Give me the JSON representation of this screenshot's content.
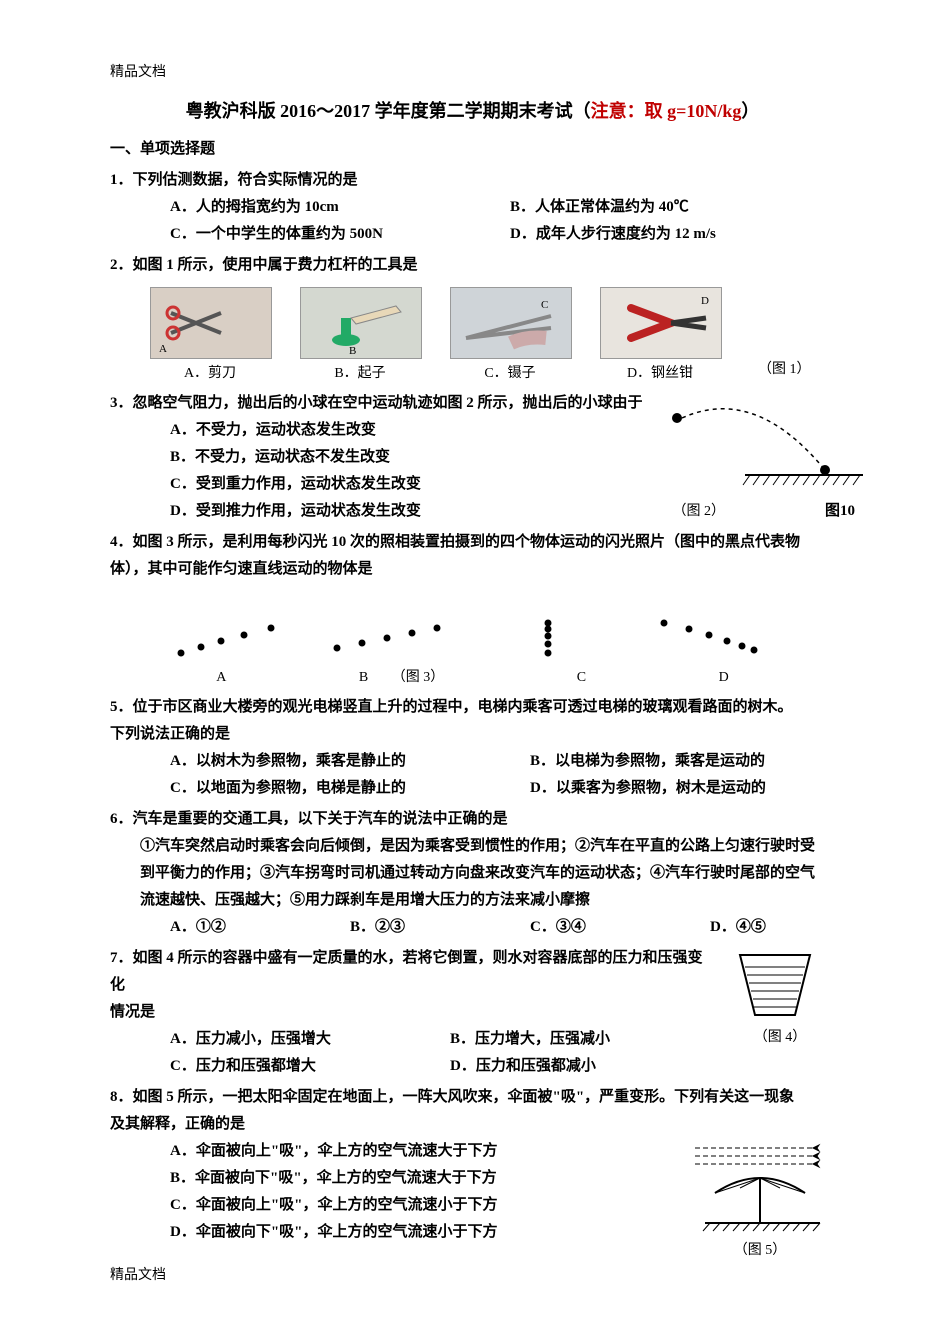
{
  "header": "精品文档",
  "footer": "精品文档",
  "title_black": "粤教沪科版 2016～2017 学年度第二学期期末考试（",
  "title_red": "注意：取 g=10N/kg",
  "title_end": "）",
  "section1": "一、单项选择题",
  "q1": {
    "stem": "1．下列估测数据，符合实际情况的是",
    "a": "A．人的拇指宽约为 10cm",
    "b": "B．人体正常体温约为 40℃",
    "c": "C．一个中学生的体重约为 500N",
    "d": "D．成年人步行速度约为 12 m/s"
  },
  "q2": {
    "stem": "2．如图 1 所示，使用中属于费力杠杆的工具是",
    "a": "A．剪刀",
    "b": "B．起子",
    "c": "C．镊子",
    "d": "D．钢丝钳",
    "caption": "（图 1）"
  },
  "q3": {
    "stem": "3．忽略空气阻力，抛出后的小球在空中运动轨迹如图 2 所示，抛出后的小球由于",
    "a": "A．不受力，运动状态发生改变",
    "b": "B．不受力，运动状态不发生改变",
    "c": "C．受到重力作用，运动状态发生改变",
    "d": "D．受到推力作用，运动状态发生改变",
    "caption": "（图 2）",
    "figlabel": "图10"
  },
  "q4": {
    "stem1": "4．如图 3 所示，是利用每秒闪光 10 次的照相装置拍摄到的四个物体运动的闪光照片（图中的黑点代表物",
    "stem2": "体），其中可能作匀速直线运动的物体是",
    "a": "A",
    "b": "B",
    "c": "C",
    "d": "D",
    "caption": "（图 3）",
    "panels": {
      "A": {
        "dots": [
          [
            15,
            50
          ],
          [
            35,
            44
          ],
          [
            55,
            38
          ],
          [
            78,
            32
          ],
          [
            105,
            25
          ]
        ]
      },
      "B": {
        "dots": [
          [
            10,
            45
          ],
          [
            35,
            40
          ],
          [
            60,
            35
          ],
          [
            85,
            30
          ],
          [
            110,
            25
          ]
        ]
      },
      "C": {
        "dots": [
          [
            60,
            50
          ],
          [
            60,
            41
          ],
          [
            60,
            33
          ],
          [
            60,
            26
          ],
          [
            60,
            20
          ]
        ]
      },
      "D": {
        "dots": [
          [
            15,
            20
          ],
          [
            40,
            26
          ],
          [
            60,
            32
          ],
          [
            78,
            38
          ],
          [
            93,
            43
          ],
          [
            105,
            47
          ]
        ]
      }
    }
  },
  "q5": {
    "stem1": "5．位于市区商业大楼旁的观光电梯竖直上升的过程中，电梯内乘客可透过电梯的玻璃观看路面的树木。",
    "stem2": "下列说法正确的是",
    "a": "A．以树木为参照物，乘客是静止的",
    "b": "B．以电梯为参照物，乘客是运动的",
    "c": "C．以地面为参照物，电梯是静止的",
    "d": "D．以乘客为参照物，树木是运动的"
  },
  "q6": {
    "stem": "6．汽车是重要的交通工具，以下关于汽车的说法中正确的是",
    "l1": "①汽车突然启动时乘客会向后倾倒，是因为乘客受到惯性的作用；②汽车在平直的公路上匀速行驶时受",
    "l2": "到平衡力的作用；③汽车拐弯时司机通过转动方向盘来改变汽车的运动状态；④汽车行驶时尾部的空气",
    "l3": "流速越快、压强越大；⑤用力踩刹车是用增大压力的方法来减小摩擦",
    "a": "A．①②",
    "b": "B．②③",
    "c": "C．③④",
    "d": "D．④⑤"
  },
  "q7": {
    "stem1": "7．如图 4 所示的容器中盛有一定质量的水，若将它倒置，则水对容器底部的压力和压强变化",
    "stem2": "情况是",
    "a": "A．压力减小，压强增大",
    "b": "B．压力增大，压强减小",
    "c": "C．压力和压强都增大",
    "d": "D．压力和压强都减小",
    "caption": "（图 4）"
  },
  "q8": {
    "stem1": "8．如图 5 所示，一把太阳伞固定在地面上，一阵大风吹来，伞面被\"吸\"，严重变形。下列有关这一现象",
    "stem2": "及其解释，正确的是",
    "a": "A．伞面被向上\"吸\"，伞上方的空气流速大于下方",
    "b": "B．伞面被向下\"吸\"，伞上方的空气流速大于下方",
    "c": "C．伞面被向上\"吸\"，伞上方的空气流速小于下方",
    "d": "D．伞面被向下\"吸\"，伞上方的空气流速小于下方",
    "caption": "（图 5）"
  }
}
